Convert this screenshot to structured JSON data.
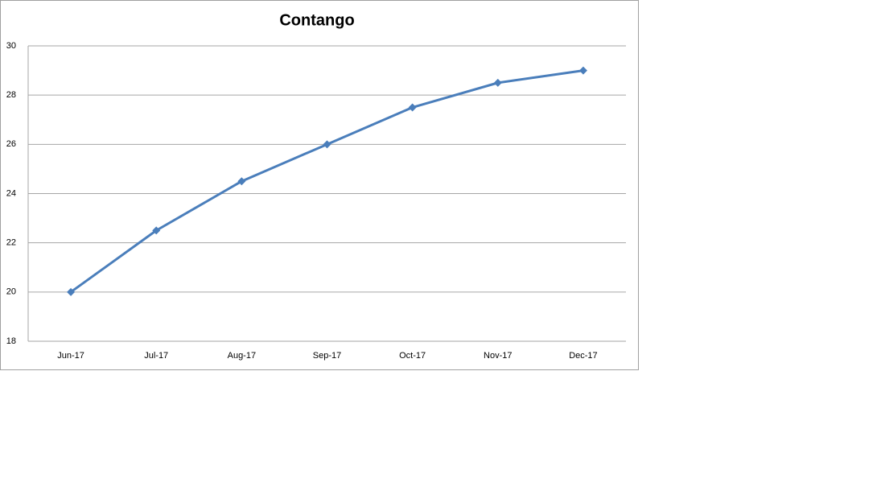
{
  "chart_data": {
    "type": "line",
    "title": "Contango",
    "categories": [
      "Jun-17",
      "Jul-17",
      "Aug-17",
      "Sep-17",
      "Oct-17",
      "Nov-17",
      "Dec-17"
    ],
    "values": [
      20,
      22.5,
      24.5,
      26,
      27.5,
      28.5,
      29
    ],
    "color": "#4a7ebb",
    "ylim": [
      18,
      30
    ],
    "yticks": [
      18,
      20,
      22,
      24,
      26,
      28,
      30
    ],
    "grid": true
  }
}
